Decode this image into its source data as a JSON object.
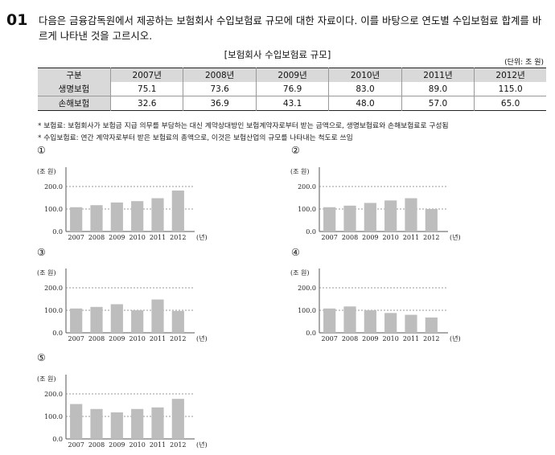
{
  "question": {
    "number": "01",
    "text": "다음은 금융감독원에서 제공하는 보험회사 수입보험료 규모에 대한 자료이다. 이를 바탕으로 연도별 수입보험료 합계를 바르게 나타낸 것을 고르시오."
  },
  "table": {
    "title": "[보험회사 수입보험료 규모]",
    "unit": "(단위: 조 원)",
    "header": [
      "구분",
      "2007년",
      "2008년",
      "2009년",
      "2010년",
      "2011년",
      "2012년"
    ],
    "rows": [
      {
        "label": "생명보험",
        "values": [
          "75.1",
          "73.6",
          "76.9",
          "83.0",
          "89.0",
          "115.0"
        ]
      },
      {
        "label": "손해보험",
        "values": [
          "32.6",
          "36.9",
          "43.1",
          "48.0",
          "57.0",
          "65.0"
        ]
      }
    ]
  },
  "notes": [
    "* 보험료: 보험회사가 보험금 지급 의무를 부담하는 대신 계약상대방인 보험계약자로부터 받는 금액으로, 생명보험료와 손해보험료로 구성됨",
    "* 수입보험료: 연간 계약자로부터 받은 보험료의 총액으로, 이것은 보험산업의 규모를 나타내는 척도로 쓰임"
  ],
  "chart_data": [
    {
      "type": "bar",
      "option": "①",
      "categories": [
        "2007",
        "2008",
        "2009",
        "2010",
        "2011",
        "2012"
      ],
      "values": [
        108,
        117,
        129,
        135,
        148,
        182
      ],
      "ylabel": "(조 원)",
      "xlabel": "(년)",
      "yticks": [
        "0.0",
        "100.0",
        "200.0"
      ],
      "ylim": [
        0,
        200
      ],
      "bar_color": "#bdbdbd"
    },
    {
      "type": "bar",
      "option": "②",
      "categories": [
        "2007",
        "2008",
        "2009",
        "2010",
        "2011",
        "2012"
      ],
      "values": [
        108,
        115,
        127,
        138,
        148,
        100
      ],
      "ylabel": "(조 원)",
      "xlabel": "(년)",
      "yticks": [
        "0.0",
        "100.0",
        "200.0"
      ],
      "ylim": [
        0,
        200
      ],
      "bar_color": "#bdbdbd"
    },
    {
      "type": "bar",
      "option": "③",
      "categories": [
        "2007",
        "2008",
        "2009",
        "2010",
        "2011",
        "2012"
      ],
      "values": [
        108,
        115,
        127,
        100,
        148,
        97
      ],
      "ylabel": "(조 원)",
      "xlabel": "(년)",
      "yticks": [
        "0.0",
        "100.0",
        "200.0"
      ],
      "ylim": [
        0,
        200
      ],
      "bar_color": "#bdbdbd"
    },
    {
      "type": "bar",
      "option": "④",
      "categories": [
        "2007",
        "2008",
        "2009",
        "2010",
        "2011",
        "2012"
      ],
      "values": [
        108,
        117,
        100,
        88,
        80,
        68
      ],
      "ylabel": "(조 원)",
      "xlabel": "(년)",
      "yticks": [
        "0.0",
        "100.0",
        "200.0"
      ],
      "ylim": [
        0,
        200
      ],
      "bar_color": "#bdbdbd"
    },
    {
      "type": "bar",
      "option": "⑤",
      "categories": [
        "2007",
        "2008",
        "2009",
        "2010",
        "2011",
        "2012"
      ],
      "values": [
        155,
        133,
        118,
        133,
        140,
        178
      ],
      "ylabel": "(조 원)",
      "xlabel": "(년)",
      "yticks": [
        "0.0",
        "100.0",
        "200.0"
      ],
      "ylim": [
        0,
        200
      ],
      "bar_color": "#bdbdbd"
    }
  ]
}
